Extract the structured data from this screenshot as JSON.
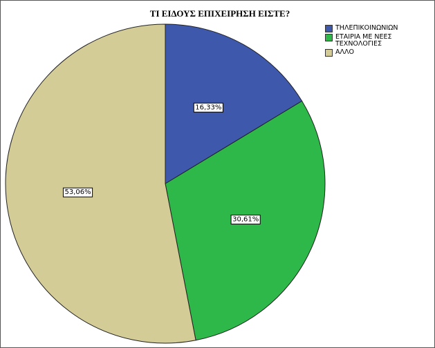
{
  "chart_data": {
    "type": "pie",
    "title": "ΤΙ ΕΙΔΟΥΣ ΕΠΙΧΕΙΡΗΣΗ ΕΙΣΤΕ?",
    "categories": [
      "ΤΗΛΕΠΙΚΟΙΝΩΝΙΩΝ",
      "ΕΤΑΙΡΙΑ ΜΕ ΝΕΕΣ ΤΕΧΝΟΛΟΓΙΕΣ",
      "ΑΛΛΟ"
    ],
    "values": [
      16.33,
      30.61,
      53.06
    ],
    "value_labels": [
      "16,33%",
      "30,61%",
      "53,06%"
    ],
    "colors": [
      "#3e58ac",
      "#2eb84a",
      "#d4cc96"
    ],
    "legend": "top-right"
  }
}
